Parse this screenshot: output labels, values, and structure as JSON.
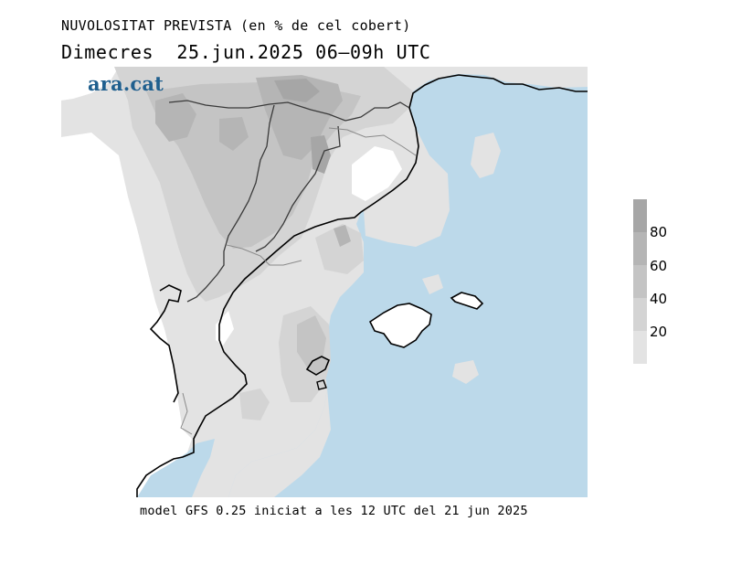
{
  "title": "NUVOLOSITAT PREVISTA (en % de cel cobert)",
  "subtitle": "Dimecres  25.jun.2025 06–09h UTC",
  "brand": "ara.cat",
  "footer": "model GFS 0.25 iniciat a les 12 UTC del 21 jun 2025",
  "legend": {
    "levels": [
      {
        "label": "",
        "color": "#a6a6a6"
      },
      {
        "label": "80",
        "color": "#b5b5b5"
      },
      {
        "label": "60",
        "color": "#c4c4c4"
      },
      {
        "label": "40",
        "color": "#d4d4d4"
      },
      {
        "label": "20",
        "color": "#e3e3e3"
      }
    ]
  },
  "colors": {
    "sea": "#bcd9ea",
    "clear_land": "#ffffff",
    "coast": "#000000",
    "borders": "#555555"
  }
}
